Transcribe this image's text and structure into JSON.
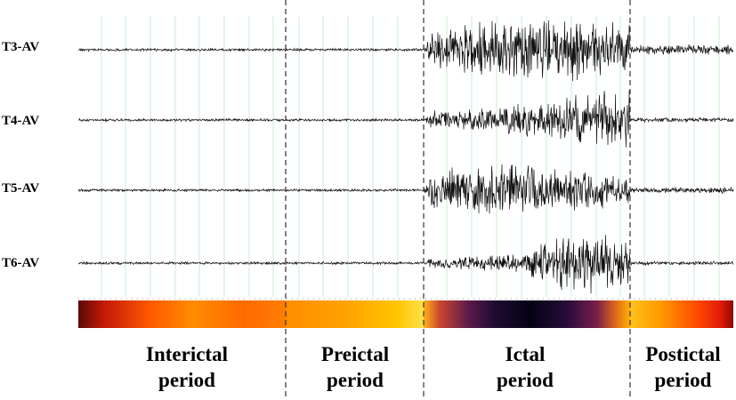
{
  "channels": [
    {
      "label": "T3-AV",
      "amp": [
        1.0,
        1.0,
        1.0,
        24,
        4.5
      ]
    },
    {
      "label": "T4-AV",
      "amp": [
        1.0,
        1.0,
        1.0,
        20,
        2.0
      ]
    },
    {
      "label": "T5-AV",
      "amp": [
        1.0,
        1.0,
        1.0,
        20,
        2.5
      ]
    },
    {
      "label": "T6-AV",
      "amp": [
        1.0,
        1.0,
        1.0,
        22,
        1.6
      ]
    }
  ],
  "periods": [
    {
      "line1": "Interictal",
      "line2": "period"
    },
    {
      "line1": "Preictal",
      "line2": "period"
    },
    {
      "line1": "Ictal",
      "line2": "period"
    },
    {
      "line1": "Postictal",
      "line2": "period"
    }
  ],
  "colors": {
    "trace": "#111111",
    "gridline": "#c8eccb",
    "boundary": "#333333",
    "colormap": [
      "#000004",
      "#3b0f70",
      "#8c2981",
      "#de4968",
      "#fe9f6d",
      "#fcfdbf"
    ]
  }
}
